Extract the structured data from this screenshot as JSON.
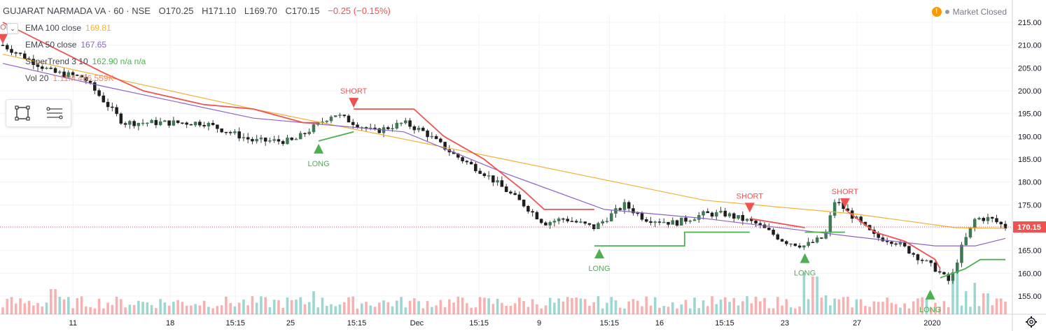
{
  "header": {
    "symbol": "GUJARAT NARMADA VA · 60 · NSE",
    "open": "O170.25",
    "high": "H171.10",
    "low": "L169.70",
    "close": "C170.15",
    "change": "−0.25 (−0.15%)",
    "market_status": "Market Closed"
  },
  "legend": {
    "ema100_label": "EMA 100 close",
    "ema100_value": "169.81",
    "ema50_label": "EMA 50 close",
    "ema50_value": "167.65",
    "supertrend_label": "SuperTrend 3 10",
    "supertrend_value": "162.90 n/a n/a",
    "volume_label": "Vol 20",
    "volume_value": "1.11M 486.559K"
  },
  "price_tag": "170.15",
  "colors": {
    "up": "#26a69a",
    "down": "#ef5350",
    "ema100": "#f2b134",
    "ema50": "#8e62c6",
    "supertrend_up": "#4caf50",
    "supertrend_down": "#ef5350",
    "grid": "#f0f3fa"
  },
  "toolbar_icons": [
    "rectangle-icon",
    "lines-icon"
  ],
  "chart_data": {
    "type": "candlestick",
    "y_ticks": [
      215,
      210,
      205,
      200,
      195,
      190,
      185,
      180,
      175,
      170,
      165,
      160,
      155
    ],
    "x_ticks": [
      "11",
      "18",
      "15:15",
      "25",
      "15:15",
      "Dec",
      "15:15",
      "9",
      "15:15",
      "16",
      "15:15",
      "23",
      "27",
      "2020"
    ],
    "last_price": 170.15,
    "anchors": [
      [
        0,
        210
      ],
      [
        0.05,
        204
      ],
      [
        0.08,
        203
      ],
      [
        0.12,
        193
      ],
      [
        0.17,
        193
      ],
      [
        0.2,
        193
      ],
      [
        0.25,
        189
      ],
      [
        0.29,
        189
      ],
      [
        0.33,
        195
      ],
      [
        0.37,
        191
      ],
      [
        0.4,
        193
      ],
      [
        0.42,
        191
      ],
      [
        0.45,
        186
      ],
      [
        0.48,
        182
      ],
      [
        0.52,
        175
      ],
      [
        0.54,
        171
      ],
      [
        0.56,
        172
      ],
      [
        0.59,
        170
      ],
      [
        0.62,
        175
      ],
      [
        0.64,
        172
      ],
      [
        0.67,
        171
      ],
      [
        0.7,
        173
      ],
      [
        0.72,
        173
      ],
      [
        0.75,
        171
      ],
      [
        0.78,
        167
      ],
      [
        0.8,
        166
      ],
      [
        0.82,
        168
      ],
      [
        0.83,
        176
      ],
      [
        0.85,
        172
      ],
      [
        0.87,
        168
      ],
      [
        0.89,
        167
      ],
      [
        0.91,
        164
      ],
      [
        0.93,
        161
      ],
      [
        0.945,
        158
      ],
      [
        0.955,
        165
      ],
      [
        0.97,
        172
      ],
      [
        0.985,
        172
      ],
      [
        1,
        170.15
      ]
    ],
    "ema100": [
      [
        0,
        208
      ],
      [
        0.25,
        196
      ],
      [
        0.5,
        185
      ],
      [
        0.7,
        176
      ],
      [
        0.85,
        173
      ],
      [
        0.95,
        170
      ],
      [
        1,
        169.81
      ]
    ],
    "ema50": [
      [
        0,
        206
      ],
      [
        0.1,
        201
      ],
      [
        0.25,
        194
      ],
      [
        0.4,
        191
      ],
      [
        0.5,
        182
      ],
      [
        0.6,
        174
      ],
      [
        0.7,
        172
      ],
      [
        0.85,
        168
      ],
      [
        0.93,
        166
      ],
      [
        0.97,
        166
      ],
      [
        1,
        167.65
      ]
    ],
    "supertrend": [
      {
        "trend": "down",
        "points": [
          [
            0,
            215
          ],
          [
            0.1,
            204
          ],
          [
            0.14,
            200
          ],
          [
            0.2,
            197
          ],
          [
            0.25,
            196
          ],
          [
            0.3,
            193
          ],
          [
            0.315,
            193
          ]
        ]
      },
      {
        "trend": "up",
        "points": [
          [
            0.315,
            189
          ],
          [
            0.35,
            191
          ]
        ]
      },
      {
        "trend": "down",
        "points": [
          [
            0.35,
            196
          ],
          [
            0.41,
            196
          ],
          [
            0.44,
            190
          ],
          [
            0.48,
            185
          ],
          [
            0.52,
            178
          ],
          [
            0.54,
            174
          ],
          [
            0.59,
            174
          ]
        ]
      },
      {
        "trend": "up",
        "points": [
          [
            0.59,
            166
          ],
          [
            0.68,
            166
          ],
          [
            0.68,
            169
          ],
          [
            0.745,
            169
          ]
        ]
      },
      {
        "trend": "down",
        "points": [
          [
            0.745,
            172
          ],
          [
            0.8,
            170
          ],
          [
            0.8,
            170
          ]
        ]
      },
      {
        "trend": "up",
        "points": [
          [
            0.8,
            169
          ],
          [
            0.84,
            169
          ]
        ]
      },
      {
        "trend": "down",
        "points": [
          [
            0.84,
            174
          ],
          [
            0.87,
            169
          ],
          [
            0.9,
            167
          ],
          [
            0.93,
            163
          ],
          [
            0.935,
            161
          ]
        ]
      },
      {
        "trend": "up",
        "points": [
          [
            0.935,
            159
          ],
          [
            0.96,
            161
          ],
          [
            0.975,
            163
          ],
          [
            1,
            163
          ]
        ]
      }
    ],
    "signals": [
      {
        "type": "SHORT",
        "x": 0,
        "price": 210
      },
      {
        "type": "LONG",
        "x": 0.315,
        "price": 189
      },
      {
        "type": "SHORT",
        "x": 0.35,
        "price": 196
      },
      {
        "type": "LONG",
        "x": 0.595,
        "price": 166
      },
      {
        "type": "SHORT",
        "x": 0.745,
        "price": 173
      },
      {
        "type": "LONG",
        "x": 0.8,
        "price": 165
      },
      {
        "type": "SHORT",
        "x": 0.84,
        "price": 174
      },
      {
        "type": "LONG",
        "x": 0.925,
        "price": 157
      }
    ],
    "volume_spikes": [
      [
        0.05,
        0.6
      ],
      [
        0.31,
        0.55
      ],
      [
        0.8,
        1.0
      ],
      [
        0.81,
        0.9
      ],
      [
        0.82,
        0.45
      ],
      [
        0.95,
        1.0
      ],
      [
        0.96,
        0.55
      ],
      [
        0.97,
        0.75
      ],
      [
        0.98,
        0.5
      ]
    ]
  }
}
